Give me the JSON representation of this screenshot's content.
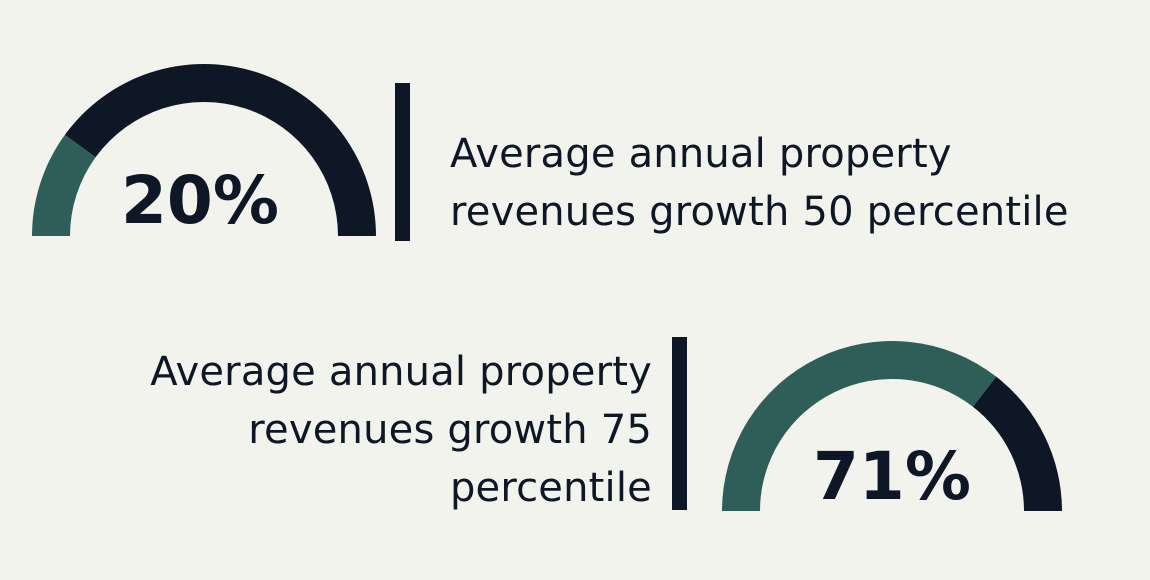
{
  "colors": {
    "background": "#f3f3ee",
    "filled": "#2f5d57",
    "remaining": "#0e1726",
    "text": "#0e1726"
  },
  "chart_data": [
    {
      "type": "gauge",
      "value": 20,
      "max": 100,
      "value_label": "20%",
      "label_lines": [
        "Average annual property",
        "revenues growth 50 percentile"
      ]
    },
    {
      "type": "gauge",
      "value": 71,
      "max": 100,
      "value_label": "71%",
      "label_lines": [
        "Average annual property",
        "revenues growth 75",
        "percentile"
      ]
    }
  ]
}
